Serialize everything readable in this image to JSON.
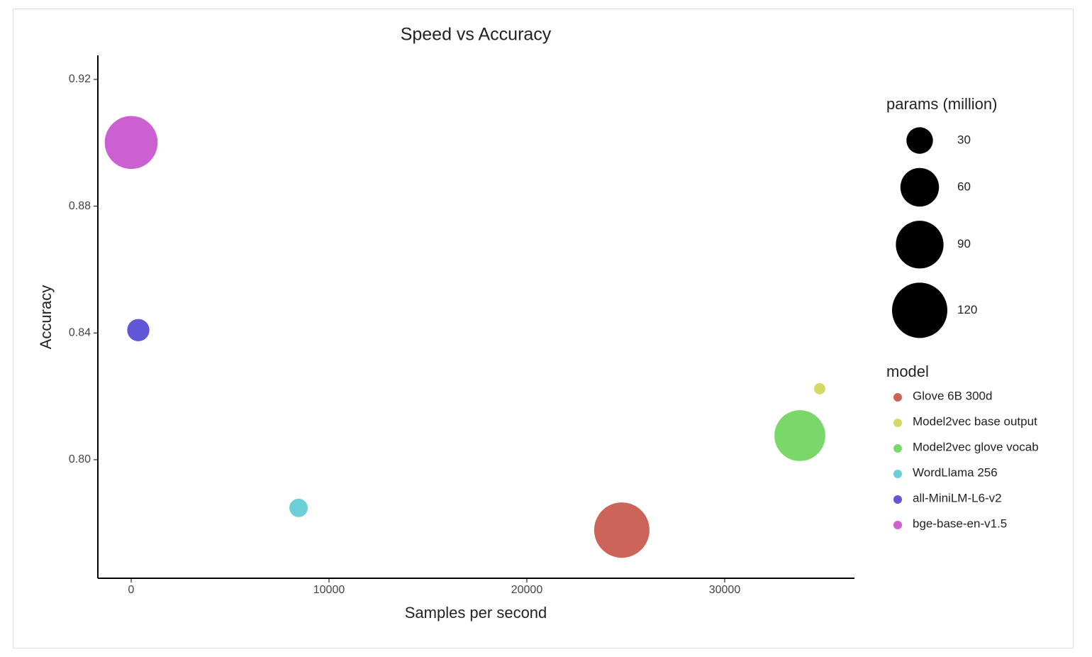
{
  "chart_data": {
    "type": "scatter",
    "title": "Speed vs Accuracy",
    "x_label": "Samples per second",
    "y_label": "Accuracy",
    "xlim": [
      -1685,
      36560
    ],
    "xticks": [
      0,
      10000,
      20000,
      30000
    ],
    "ylim": [
      0.7626,
      0.9276
    ],
    "yticks": [
      {
        "value": 0.8,
        "label": "0.80"
      },
      0.84,
      0.88,
      0.92
    ],
    "grid": false,
    "size_legend": {
      "title": "params (million)",
      "values": [
        30,
        60,
        90,
        120
      ]
    },
    "legend_title": "model",
    "series": [
      {
        "name": "Glove 6B 300d",
        "color": "#cc6459",
        "x": [
          24800
        ],
        "values": [
          0.7778
        ],
        "sizes": [
          120
        ]
      },
      {
        "name": "Model2vec base output",
        "color": "#d4d865",
        "x": [
          34800
        ],
        "values": [
          0.8224
        ],
        "sizes": [
          8
        ]
      },
      {
        "name": "Model2vec glove vocab",
        "color": "#7ad86a",
        "x": [
          33800
        ],
        "values": [
          0.8076
        ],
        "sizes": [
          102
        ]
      },
      {
        "name": "WordLlama 256",
        "color": "#6ccfd7",
        "x": [
          8460
        ],
        "values": [
          0.7848
        ],
        "sizes": [
          16
        ]
      },
      {
        "name": "all-MiniLM-L6-v2",
        "color": "#6056d6",
        "x": [
          360
        ],
        "values": [
          0.8409
        ],
        "sizes": [
          22
        ]
      },
      {
        "name": "bge-base-en-v1.5",
        "color": "#cc5fd1",
        "x": [
          0
        ],
        "values": [
          0.9001
        ],
        "sizes": [
          110
        ]
      }
    ]
  }
}
